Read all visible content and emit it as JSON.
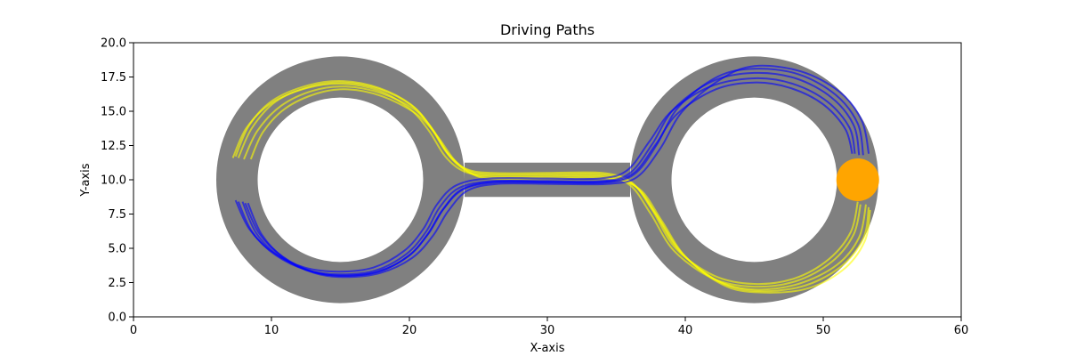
{
  "chart_data": {
    "type": "line",
    "title": "Driving Paths",
    "xlabel": "X-axis",
    "ylabel": "Y-axis",
    "xlim": [
      0,
      60
    ],
    "ylim": [
      0,
      20
    ],
    "xticks": [
      "0",
      "10",
      "20",
      "30",
      "40",
      "50",
      "60"
    ],
    "yticks": [
      "0.0",
      "2.5",
      "5.0",
      "7.5",
      "10.0",
      "12.5",
      "15.0",
      "17.5",
      "20.0"
    ],
    "grid": false,
    "track": {
      "color": "#808080",
      "rings": [
        {
          "name": "left-ring",
          "center": [
            15,
            10
          ],
          "inner_radius": 6,
          "outer_radius": 9
        },
        {
          "name": "right-ring",
          "center": [
            45,
            10
          ],
          "inner_radius": 6,
          "outer_radius": 9
        }
      ],
      "connector": {
        "x_range": [
          24,
          36
        ],
        "y_range": [
          8.75,
          11.25
        ]
      }
    },
    "marker": {
      "name": "goal-marker",
      "x": 52.5,
      "y": 10,
      "color": "#FFA500"
    },
    "series": [
      {
        "color": "#FFFF00",
        "paths": [
          [
            [
              7.2,
              11.6
            ],
            [
              8.2,
              13.8
            ],
            [
              10.0,
              15.6
            ],
            [
              12.6,
              16.7
            ],
            [
              15.2,
              17.0
            ],
            [
              17.8,
              16.5
            ],
            [
              20.0,
              15.2
            ],
            [
              21.4,
              13.6
            ],
            [
              22.6,
              11.7
            ],
            [
              24.0,
              10.6
            ],
            [
              26.0,
              10.3
            ],
            [
              30.0,
              10.3
            ],
            [
              34.0,
              10.3
            ],
            [
              36.0,
              9.6
            ],
            [
              37.5,
              7.5
            ],
            [
              39.2,
              4.8
            ],
            [
              42.0,
              2.8
            ],
            [
              45.0,
              2.2
            ],
            [
              48.0,
              2.6
            ],
            [
              50.6,
              4.0
            ],
            [
              52.2,
              6.0
            ],
            [
              52.7,
              8.2
            ]
          ],
          [
            [
              7.6,
              11.6
            ],
            [
              8.6,
              13.8
            ],
            [
              10.3,
              15.7
            ],
            [
              12.8,
              16.8
            ],
            [
              15.3,
              17.1
            ],
            [
              17.9,
              16.6
            ],
            [
              20.2,
              15.4
            ],
            [
              21.6,
              13.8
            ],
            [
              22.8,
              11.9
            ],
            [
              24.2,
              10.7
            ],
            [
              26.0,
              10.4
            ],
            [
              30.0,
              10.4
            ],
            [
              34.0,
              10.4
            ],
            [
              36.2,
              9.7
            ],
            [
              37.8,
              7.6
            ],
            [
              39.5,
              4.9
            ],
            [
              42.2,
              2.7
            ],
            [
              45.0,
              2.0
            ],
            [
              48.2,
              2.4
            ],
            [
              51.0,
              3.8
            ],
            [
              52.6,
              5.8
            ],
            [
              53.1,
              8.2
            ]
          ],
          [
            [
              8.0,
              11.5
            ],
            [
              9.0,
              13.6
            ],
            [
              10.7,
              15.4
            ],
            [
              13.0,
              16.5
            ],
            [
              15.4,
              16.8
            ],
            [
              18.0,
              16.3
            ],
            [
              20.4,
              15.1
            ],
            [
              21.8,
              13.5
            ],
            [
              23.0,
              11.6
            ],
            [
              24.4,
              10.5
            ],
            [
              26.0,
              10.2
            ],
            [
              30.0,
              10.2
            ],
            [
              34.0,
              10.2
            ],
            [
              36.4,
              9.5
            ],
            [
              38.0,
              7.3
            ],
            [
              39.8,
              4.6
            ],
            [
              42.4,
              2.6
            ],
            [
              45.0,
              1.9
            ],
            [
              48.4,
              2.2
            ],
            [
              51.2,
              3.6
            ],
            [
              52.9,
              5.7
            ],
            [
              53.3,
              8.0
            ]
          ],
          [
            [
              8.5,
              11.5
            ],
            [
              9.4,
              13.5
            ],
            [
              11.0,
              15.2
            ],
            [
              13.3,
              16.3
            ],
            [
              15.5,
              16.6
            ],
            [
              18.0,
              16.1
            ],
            [
              20.5,
              14.8
            ],
            [
              22.0,
              13.2
            ],
            [
              23.3,
              11.4
            ],
            [
              24.6,
              10.4
            ],
            [
              26.0,
              10.1
            ],
            [
              30.0,
              10.1
            ],
            [
              34.5,
              10.1
            ],
            [
              36.7,
              9.3
            ],
            [
              38.3,
              7.0
            ],
            [
              40.0,
              4.4
            ],
            [
              42.6,
              2.4
            ],
            [
              45.0,
              1.8
            ],
            [
              48.6,
              2.0
            ],
            [
              51.4,
              3.4
            ],
            [
              53.0,
              5.5
            ],
            [
              53.4,
              7.8
            ]
          ],
          [
            [
              7.4,
              11.7
            ],
            [
              8.4,
              14.0
            ],
            [
              10.1,
              15.8
            ],
            [
              12.7,
              16.9
            ],
            [
              15.2,
              17.2
            ],
            [
              17.8,
              16.7
            ],
            [
              20.1,
              15.5
            ],
            [
              21.5,
              13.9
            ],
            [
              22.7,
              12.0
            ],
            [
              24.1,
              10.8
            ],
            [
              26.0,
              10.5
            ],
            [
              30.0,
              10.5
            ],
            [
              34.0,
              10.5
            ],
            [
              36.1,
              9.8
            ],
            [
              37.6,
              7.8
            ],
            [
              39.3,
              5.0
            ],
            [
              42.1,
              3.0
            ],
            [
              45.0,
              2.4
            ],
            [
              47.9,
              2.8
            ],
            [
              50.4,
              4.2
            ],
            [
              52.0,
              6.2
            ],
            [
              52.5,
              8.4
            ]
          ]
        ]
      },
      {
        "color": "#0000FF",
        "paths": [
          [
            [
              7.6,
              8.4
            ],
            [
              8.6,
              6.2
            ],
            [
              10.3,
              4.5
            ],
            [
              12.6,
              3.4
            ],
            [
              15.0,
              3.1
            ],
            [
              17.6,
              3.4
            ],
            [
              19.8,
              4.6
            ],
            [
              21.2,
              6.2
            ],
            [
              22.2,
              8.0
            ],
            [
              23.6,
              9.4
            ],
            [
              26.0,
              9.9
            ],
            [
              30.0,
              9.9
            ],
            [
              34.0,
              9.9
            ],
            [
              36.0,
              10.5
            ],
            [
              37.6,
              12.6
            ],
            [
              39.2,
              15.2
            ],
            [
              42.0,
              17.2
            ],
            [
              45.0,
              17.8
            ],
            [
              48.0,
              17.4
            ],
            [
              50.6,
              16.0
            ],
            [
              52.2,
              14.0
            ],
            [
              52.6,
              11.8
            ]
          ],
          [
            [
              7.9,
              8.4
            ],
            [
              8.9,
              6.1
            ],
            [
              10.6,
              4.4
            ],
            [
              12.9,
              3.3
            ],
            [
              15.2,
              3.0
            ],
            [
              17.8,
              3.3
            ],
            [
              20.0,
              4.5
            ],
            [
              21.4,
              6.1
            ],
            [
              22.5,
              7.9
            ],
            [
              23.9,
              9.3
            ],
            [
              26.2,
              9.8
            ],
            [
              30.0,
              9.8
            ],
            [
              34.2,
              9.8
            ],
            [
              36.3,
              10.4
            ],
            [
              37.9,
              12.5
            ],
            [
              39.5,
              15.3
            ],
            [
              42.3,
              17.5
            ],
            [
              45.0,
              18.1
            ],
            [
              48.2,
              17.7
            ],
            [
              50.9,
              16.2
            ],
            [
              52.5,
              14.1
            ],
            [
              52.9,
              11.8
            ]
          ],
          [
            [
              8.3,
              8.3
            ],
            [
              9.3,
              6.0
            ],
            [
              10.9,
              4.3
            ],
            [
              13.1,
              3.2
            ],
            [
              15.3,
              2.9
            ],
            [
              17.9,
              3.2
            ],
            [
              20.2,
              4.3
            ],
            [
              21.7,
              5.9
            ],
            [
              22.8,
              7.7
            ],
            [
              24.2,
              9.2
            ],
            [
              26.4,
              9.7
            ],
            [
              30.0,
              9.7
            ],
            [
              34.4,
              9.7
            ],
            [
              36.5,
              10.2
            ],
            [
              38.2,
              12.3
            ],
            [
              39.8,
              15.0
            ],
            [
              42.5,
              17.3
            ],
            [
              45.0,
              18.3
            ],
            [
              48.4,
              17.9
            ],
            [
              51.2,
              16.4
            ],
            [
              52.8,
              14.3
            ],
            [
              53.3,
              11.9
            ]
          ],
          [
            [
              7.4,
              8.5
            ],
            [
              8.4,
              6.4
            ],
            [
              10.1,
              4.7
            ],
            [
              12.4,
              3.6
            ],
            [
              14.9,
              3.3
            ],
            [
              17.4,
              3.6
            ],
            [
              19.6,
              4.8
            ],
            [
              21.0,
              6.4
            ],
            [
              22.0,
              8.2
            ],
            [
              23.4,
              9.6
            ],
            [
              25.8,
              10.1
            ],
            [
              30.0,
              10.1
            ],
            [
              33.8,
              10.1
            ],
            [
              35.8,
              10.7
            ],
            [
              37.4,
              12.8
            ],
            [
              39.0,
              15.0
            ],
            [
              41.8,
              16.8
            ],
            [
              45.0,
              17.4
            ],
            [
              47.8,
              17.0
            ],
            [
              50.3,
              15.7
            ],
            [
              51.9,
              13.8
            ],
            [
              52.3,
              11.9
            ]
          ],
          [
            [
              8.1,
              8.3
            ],
            [
              9.1,
              6.1
            ],
            [
              10.8,
              4.4
            ],
            [
              13.0,
              3.3
            ],
            [
              15.1,
              3.0
            ],
            [
              17.7,
              3.3
            ],
            [
              19.9,
              4.4
            ],
            [
              21.3,
              6.0
            ],
            [
              22.4,
              7.8
            ],
            [
              23.8,
              9.3
            ],
            [
              26.1,
              9.85
            ],
            [
              30.0,
              9.85
            ],
            [
              34.1,
              9.85
            ],
            [
              36.2,
              10.45
            ],
            [
              37.8,
              12.5
            ],
            [
              39.4,
              14.8
            ],
            [
              42.2,
              16.6
            ],
            [
              45.0,
              17.1
            ],
            [
              47.6,
              16.7
            ],
            [
              50.0,
              15.5
            ],
            [
              51.6,
              13.7
            ],
            [
              52.1,
              11.9
            ]
          ]
        ]
      }
    ]
  }
}
